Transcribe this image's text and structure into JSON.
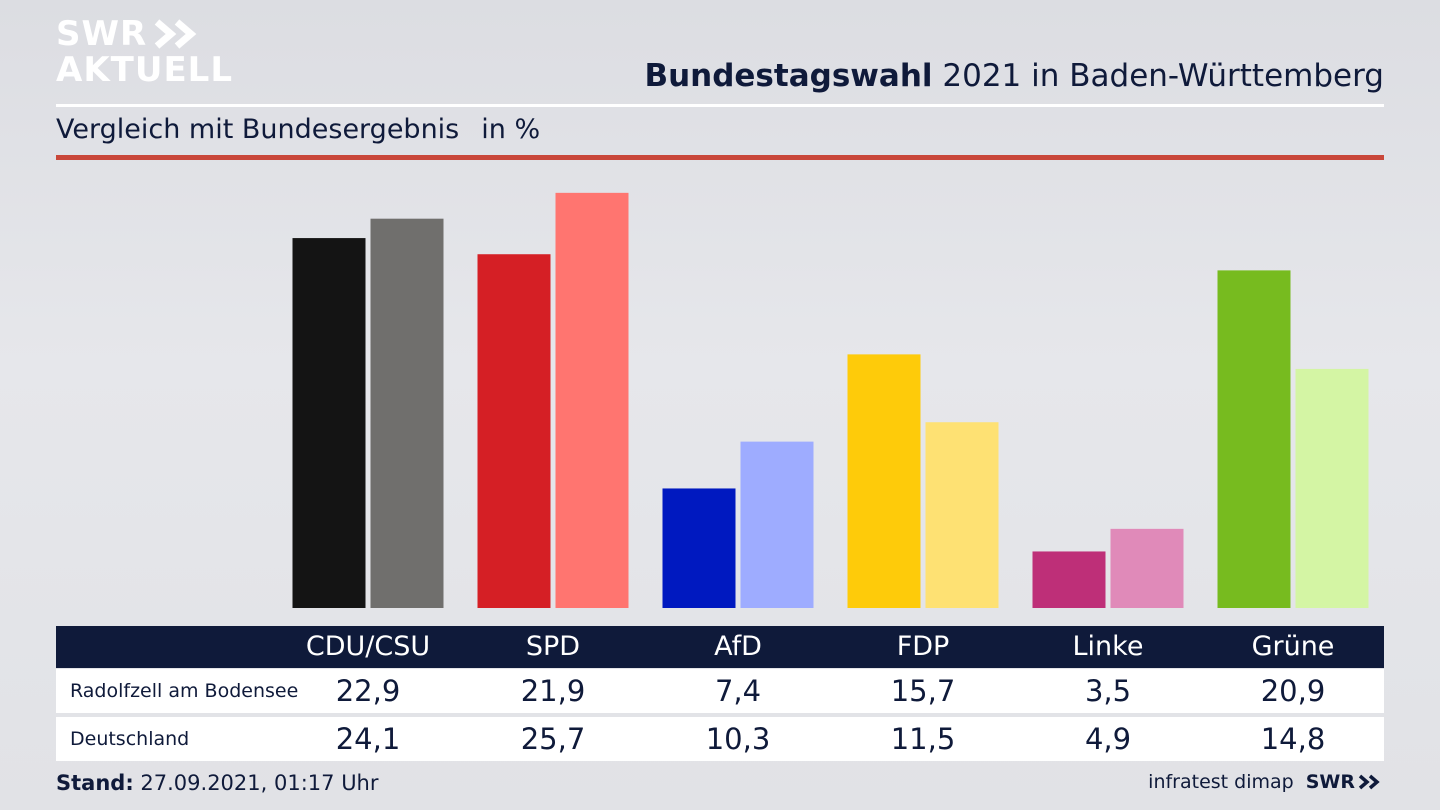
{
  "logo": {
    "line1": "SWR",
    "line2": "AKTUELL"
  },
  "header": {
    "title_bold": "Bundestagswahl",
    "title_rest": "2021 in Baden-Württemberg",
    "subtitle": "Vergleich mit Bundesergebnis",
    "unit": "in %"
  },
  "colors": {
    "navy": "#0f1a3a",
    "red_rule": "#c9473a"
  },
  "chart_data": {
    "type": "bar",
    "categories": [
      "CDU/CSU",
      "SPD",
      "AfD",
      "FDP",
      "Linke",
      "Grüne"
    ],
    "series": [
      {
        "name": "Radolfzell am Bodensee",
        "values": [
          22.9,
          21.9,
          7.4,
          15.7,
          3.5,
          20.9
        ]
      },
      {
        "name": "Deutschland",
        "values": [
          24.1,
          25.7,
          10.3,
          11.5,
          4.9,
          14.8
        ]
      }
    ],
    "colors_region": [
      "#141414",
      "#d51f25",
      "#0019c0",
      "#fecb0a",
      "#be2f78",
      "#77bb1f"
    ],
    "colors_national": [
      "#706f6d",
      "#ff7570",
      "#9eacff",
      "#fee173",
      "#e08ab9",
      "#d4f5a4"
    ],
    "ylim": [
      0,
      26
    ]
  },
  "table": {
    "rows": [
      {
        "label": "Radolfzell am Bodensee",
        "values": [
          "22,9",
          "21,9",
          "7,4",
          "15,7",
          "3,5",
          "20,9"
        ]
      },
      {
        "label": "Deutschland",
        "values": [
          "24,1",
          "25,7",
          "10,3",
          "11,5",
          "4,9",
          "14,8"
        ]
      }
    ]
  },
  "footer": {
    "stand_label": "Stand:",
    "stand_value": "27.09.2021, 01:17 Uhr",
    "source": "infratest dimap",
    "brand": "SWR"
  }
}
